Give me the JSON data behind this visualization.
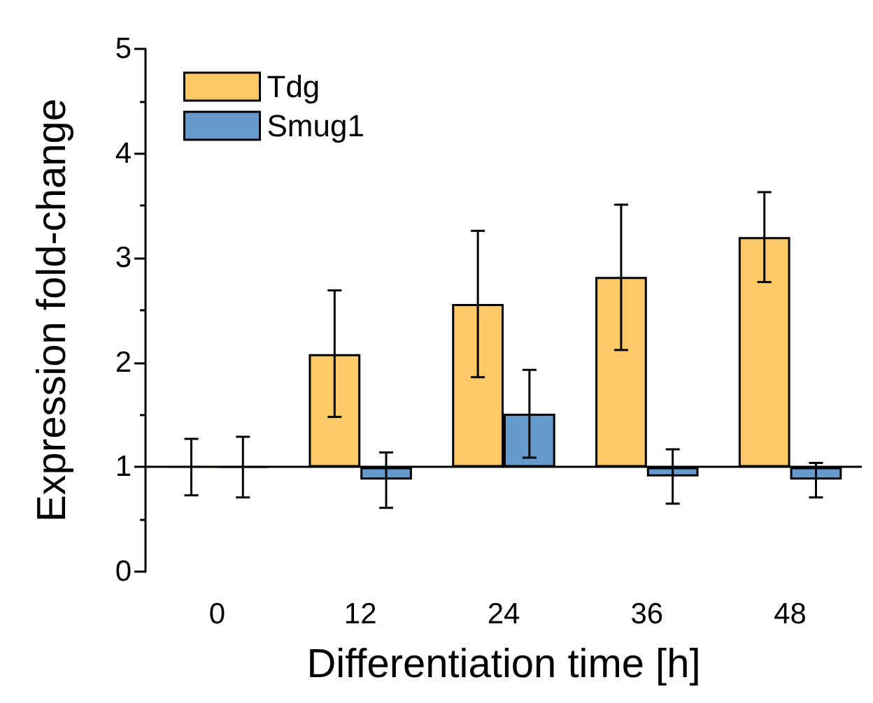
{
  "chart_data": {
    "type": "bar",
    "xlabel": "Differentiation time [h]",
    "ylabel": "Expression fold-change",
    "categories": [
      "0",
      "12",
      "24",
      "36",
      "48"
    ],
    "series": [
      {
        "name": "Tdg",
        "color": "#fbc965",
        "base": [
          1,
          1,
          1,
          1,
          1
        ],
        "values": [
          0,
          1.08,
          1.56,
          1.82,
          2.2
        ],
        "errors": [
          [
            0.73,
            1.27
          ],
          [
            1.48,
            2.69
          ],
          [
            1.86,
            3.26
          ],
          [
            2.12,
            3.51
          ],
          [
            2.77,
            3.63
          ]
        ]
      },
      {
        "name": "Smug1",
        "color": "#6699cc",
        "base": [
          1,
          1,
          1,
          1,
          1
        ],
        "values": [
          0,
          -0.12,
          0.51,
          -0.09,
          -0.12
        ],
        "errors": [
          [
            0.71,
            1.29
          ],
          [
            0.61,
            1.14
          ],
          [
            1.09,
            1.93
          ],
          [
            0.65,
            1.17
          ],
          [
            0.71,
            1.04
          ]
        ]
      }
    ],
    "ylim": [
      0,
      5
    ],
    "yticks": [
      0,
      1,
      2,
      3,
      4,
      5
    ],
    "ref_lines": [
      {
        "axis": "y",
        "value": 1
      }
    ],
    "grid": false,
    "legend": "top left"
  }
}
